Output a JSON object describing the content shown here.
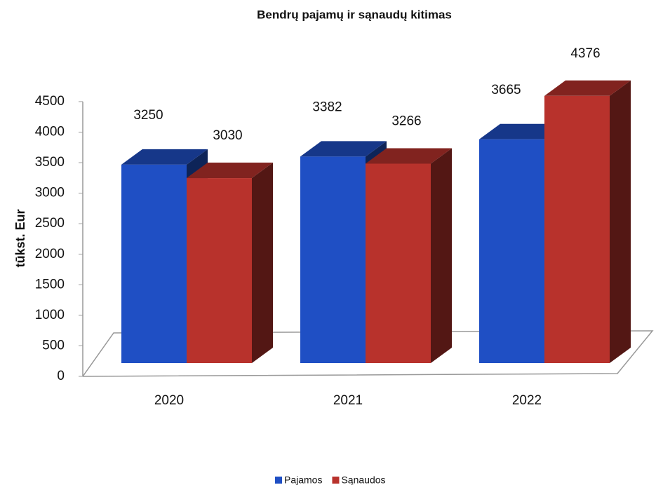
{
  "chart_data": {
    "type": "bar3d",
    "title": "Bendrų pajamų ir sąnaudų kitimas",
    "y_label": "tūkst. Eur",
    "categories": [
      "2020",
      "2021",
      "2022"
    ],
    "series": [
      {
        "name": "Pajamos",
        "color": "#1f4fc4",
        "values": [
          3250,
          3382,
          3665
        ]
      },
      {
        "name": "Sąnaudos",
        "color": "#b8322c",
        "values": [
          3030,
          3266,
          4376
        ]
      }
    ],
    "ylim": [
      0,
      4500
    ],
    "yticks": [
      0,
      500,
      1000,
      1500,
      2000,
      2500,
      3000,
      3500,
      4000,
      4500
    ],
    "legend": "bottom"
  }
}
